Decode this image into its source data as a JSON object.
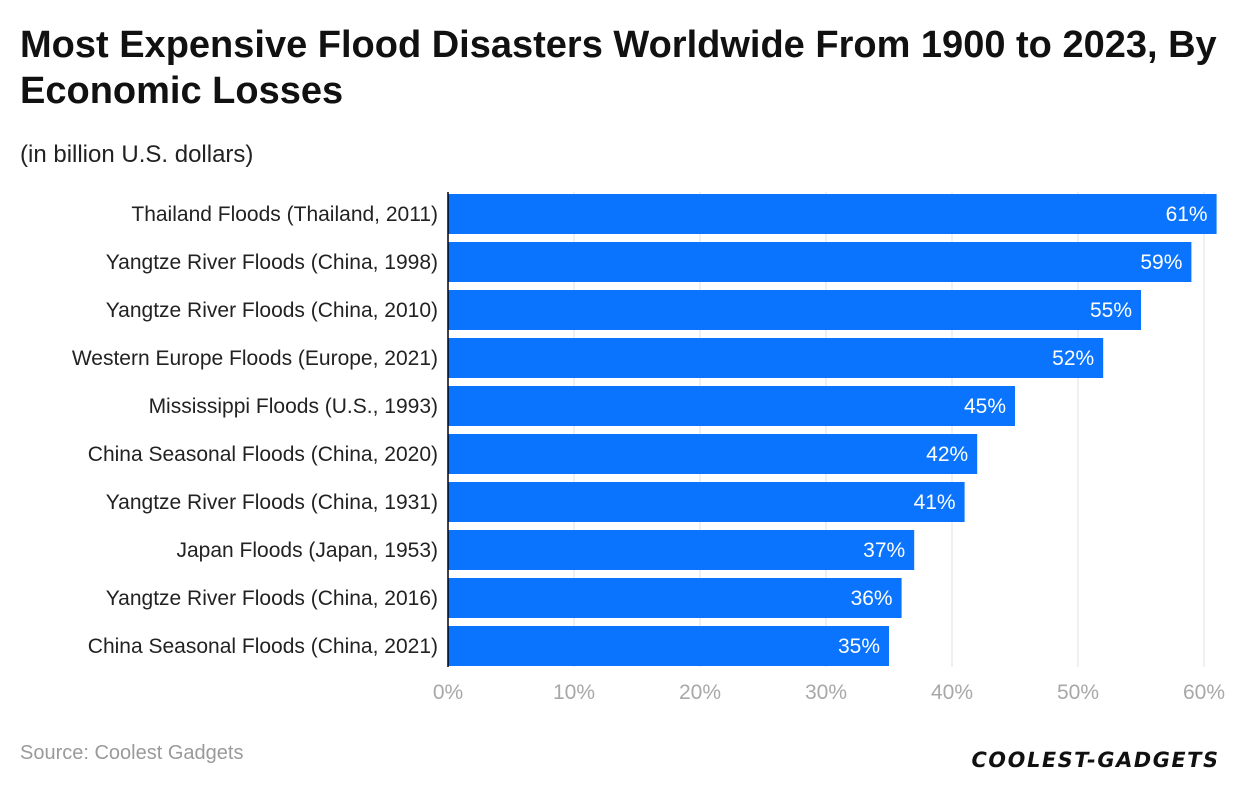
{
  "title": "Most Expensive Flood Disasters Worldwide From 1900 to 2023, By Economic Losses",
  "subtitle": "(in billion U.S. dollars)",
  "source": "Source: Coolest Gadgets",
  "logo_text": "COOLEST-GADGETS",
  "colors": {
    "bar": "#0a74ff",
    "grid": "#e2e2e2",
    "axis": "#000000"
  },
  "chart_data": {
    "type": "bar",
    "orientation": "horizontal",
    "title": "Most Expensive Flood Disasters Worldwide From 1900 to 2023, By Economic Losses",
    "subtitle": "(in billion U.S. dollars)",
    "categories": [
      "Thailand Floods (Thailand, 2011)",
      "Yangtze River Floods (China, 1998)",
      "Yangtze River Floods (China, 2010)",
      "Western Europe Floods (Europe, 2021)",
      "Mississippi Floods (U.S., 1993)",
      "China Seasonal Floods (China, 2020)",
      "Yangtze River Floods (China, 1931)",
      "Japan Floods (Japan, 1953)",
      "Yangtze River Floods (China, 2016)",
      "China Seasonal Floods (China, 2021)"
    ],
    "values": [
      61,
      59,
      55,
      52,
      45,
      42,
      41,
      37,
      36,
      35
    ],
    "value_labels": [
      "61%",
      "59%",
      "55%",
      "52%",
      "45%",
      "42%",
      "41%",
      "37%",
      "36%",
      "35%"
    ],
    "xticks": [
      0,
      10,
      20,
      30,
      40,
      50,
      60
    ],
    "xtick_labels": [
      "0%",
      "10%",
      "20%",
      "30%",
      "40%",
      "50%",
      "60%"
    ],
    "xlim": [
      0,
      61
    ],
    "grid": true,
    "legend": "none"
  }
}
